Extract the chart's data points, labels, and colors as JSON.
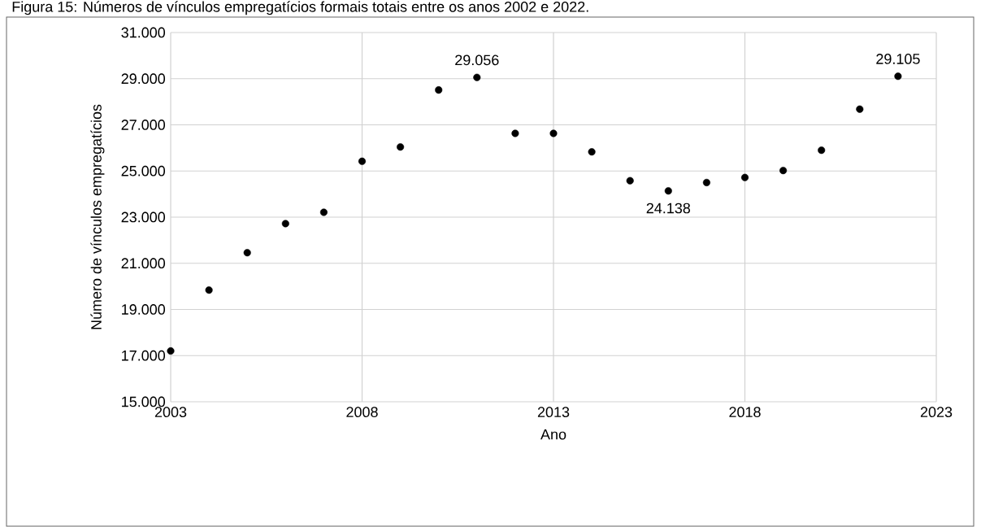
{
  "chart_data": {
    "type": "scatter",
    "title": "Figura 15: Números de vínculos empregatícios formais totais entre os anos 2002 e 2022.",
    "xlabel": "Ano",
    "ylabel": "Número de vínculos empregatícios",
    "x": [
      2003,
      2004,
      2005,
      2006,
      2007,
      2008,
      2009,
      2010,
      2011,
      2012,
      2013,
      2014,
      2015,
      2016,
      2017,
      2018,
      2019,
      2020,
      2021,
      2022
    ],
    "values": [
      17200,
      19840,
      21460,
      22720,
      23210,
      25420,
      26040,
      28510,
      29056,
      26630,
      26630,
      25830,
      24580,
      24138,
      24500,
      24720,
      25020,
      25900,
      27680,
      29105
    ],
    "value_labels": [
      null,
      null,
      null,
      null,
      null,
      null,
      null,
      null,
      "29.056",
      null,
      null,
      null,
      null,
      "24.138",
      null,
      null,
      null,
      null,
      null,
      "29.105"
    ],
    "color": "#000000",
    "marker": "circle",
    "grid": true,
    "xlim": [
      2003,
      2023
    ],
    "xticks": [
      2003,
      2008,
      2013,
      2018,
      2023
    ],
    "ylim": [
      15000,
      31000
    ],
    "yticks": [
      {
        "value": 15000,
        "label": "15.000"
      },
      {
        "value": 17000,
        "label": "17.000"
      },
      {
        "value": 19000,
        "label": "19.000"
      },
      {
        "value": 21000,
        "label": "21.000"
      },
      {
        "value": 23000,
        "label": "23.000"
      },
      {
        "value": 25000,
        "label": "25.000"
      },
      {
        "value": 27000,
        "label": "27.000"
      },
      {
        "value": 29000,
        "label": "29.000"
      },
      {
        "value": 31000,
        "label": "31.000"
      }
    ]
  }
}
